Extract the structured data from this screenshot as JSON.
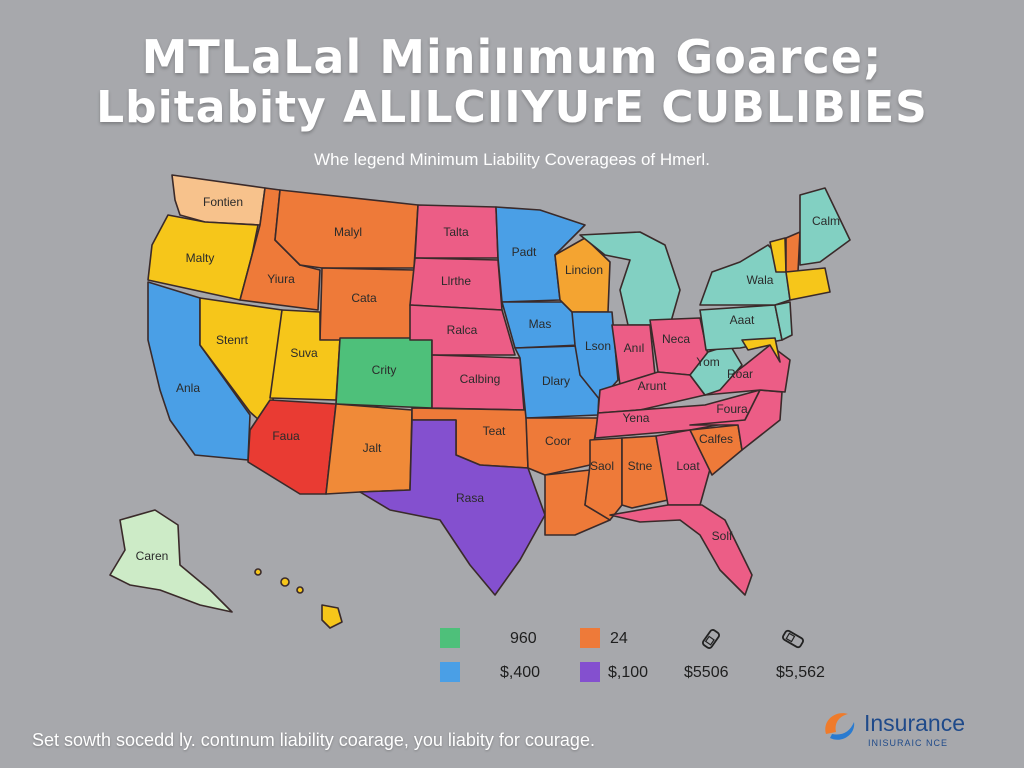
{
  "title": {
    "line1": "MTLaLal Miniıımum Goarce;",
    "line2": "Lbitabity ALILCIIYUrE CUBLIBIES"
  },
  "subtitle": "Whe legend Minimum Liability Coverageǝs of Hmerl.",
  "map": {
    "states": [
      {
        "id": "wa",
        "label": "",
        "color": "#f7c28c"
      },
      {
        "id": "wa2",
        "label": "Fontien",
        "color": "#f7c28c"
      },
      {
        "id": "or",
        "label": "Malty",
        "color": "#f6c61a"
      },
      {
        "id": "ca",
        "label": "Anla",
        "color": "#4a9fe6"
      },
      {
        "id": "nv",
        "label": "Stenrt",
        "color": "#f6c61a"
      },
      {
        "id": "id",
        "label": "Yiura",
        "color": "#ee7a39"
      },
      {
        "id": "mt",
        "label": "Malyl",
        "color": "#ee7a39"
      },
      {
        "id": "wy",
        "label": "Cata",
        "color": "#ee7a39"
      },
      {
        "id": "ut",
        "label": "Suva",
        "color": "#f6c61a"
      },
      {
        "id": "co",
        "label": "Crity",
        "color": "#4ec07a"
      },
      {
        "id": "az",
        "label": "Faua",
        "color": "#e93b33"
      },
      {
        "id": "nm",
        "label": "Jalt",
        "color": "#f08a38"
      },
      {
        "id": "nd",
        "label": "Talta",
        "color": "#ec5d86"
      },
      {
        "id": "sd",
        "label": "Llrthe",
        "color": "#ec5d86"
      },
      {
        "id": "ne",
        "label": "Ralca",
        "color": "#ec5d86"
      },
      {
        "id": "ks",
        "label": "Calbing",
        "color": "#ec5d86"
      },
      {
        "id": "ok",
        "label": "Teat",
        "color": "#ee7a39"
      },
      {
        "id": "tx",
        "label": "Rasa",
        "color": "#8450cf"
      },
      {
        "id": "mn",
        "label": "Padt",
        "color": "#4a9fe6"
      },
      {
        "id": "ia",
        "label": "Mas",
        "color": "#4a9fe6"
      },
      {
        "id": "mo",
        "label": "Dlary",
        "color": "#4a9fe6"
      },
      {
        "id": "ar",
        "label": "Coor",
        "color": "#ee7a39"
      },
      {
        "id": "la",
        "label": "",
        "color": "#ee7a39"
      },
      {
        "id": "wi",
        "label": "Lincion",
        "color": "#f4a431"
      },
      {
        "id": "il",
        "label": "Lson",
        "color": "#4a9fe6"
      },
      {
        "id": "mi",
        "label": "",
        "color": "#82d0c2"
      },
      {
        "id": "in",
        "label": "Anıl",
        "color": "#ec5d86"
      },
      {
        "id": "oh",
        "label": "Neca",
        "color": "#ec5d86"
      },
      {
        "id": "ky",
        "label": "Arunt",
        "color": "#ec5d86"
      },
      {
        "id": "tn",
        "label": "Yena",
        "color": "#ec5d86"
      },
      {
        "id": "ms",
        "label": "Saol",
        "color": "#ee7a39"
      },
      {
        "id": "al",
        "label": "Stne",
        "color": "#ee7a39"
      },
      {
        "id": "ga",
        "label": "Loat",
        "color": "#ec5d86"
      },
      {
        "id": "fl",
        "label": "Solf",
        "color": "#ec5d86"
      },
      {
        "id": "sc",
        "label": "Calfes",
        "color": "#ee7a39"
      },
      {
        "id": "nc",
        "label": "Foura",
        "color": "#ec5d86"
      },
      {
        "id": "va",
        "label": "Roar",
        "color": "#ec5d86"
      },
      {
        "id": "wv",
        "label": "Yom",
        "color": "#82d0c2"
      },
      {
        "id": "pa",
        "label": "Aaat",
        "color": "#82d0c2"
      },
      {
        "id": "ny",
        "label": "Wala",
        "color": "#82d0c2"
      },
      {
        "id": "vt",
        "label": "",
        "color": "#f6c61a"
      },
      {
        "id": "nh",
        "label": "",
        "color": "#ee7a39"
      },
      {
        "id": "me",
        "label": "Calm",
        "color": "#82d0c2"
      },
      {
        "id": "ma",
        "label": "",
        "color": "#f6c61a"
      },
      {
        "id": "nj",
        "label": "",
        "color": "#82d0c2"
      },
      {
        "id": "md",
        "label": "",
        "color": "#f6c61a"
      },
      {
        "id": "ak",
        "label": "Caren",
        "color": "#cdebc7"
      },
      {
        "id": "hi",
        "label": "",
        "color": "#f6c61a"
      }
    ]
  },
  "legend": {
    "items": [
      {
        "color": "#4ec07a",
        "value": "960"
      },
      {
        "color": "#ee7a39",
        "value": "24"
      },
      {
        "color": "#4a9fe6",
        "value": "$,400"
      },
      {
        "color": "#8450cf",
        "value": "$,100"
      }
    ],
    "icon_items": [
      {
        "icon": "car-icon",
        "value": "$5506"
      },
      {
        "icon": "car-icon",
        "value": "$5,562"
      }
    ]
  },
  "footer": "Set sowth socedd ly. contınum liability coarage, you liabity for courage.",
  "logo": {
    "name": "Insurance",
    "tagline": "INISURAIC NCE"
  }
}
